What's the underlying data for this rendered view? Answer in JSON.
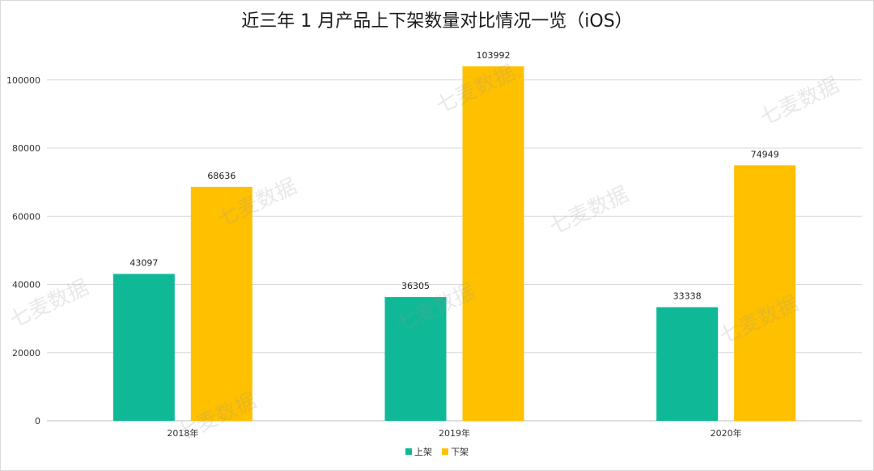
{
  "chart_data": {
    "type": "bar",
    "title": "近三年 1 月产品上下架数量对比情况一览（iOS）",
    "categories": [
      "2018年",
      "2019年",
      "2020年"
    ],
    "series": [
      {
        "name": "上架",
        "color": "#0fb997",
        "values": [
          43097,
          36305,
          33338
        ]
      },
      {
        "name": "下架",
        "color": "#ffc000",
        "values": [
          68636,
          103992,
          74949
        ]
      }
    ],
    "yticks": [
      "0",
      "20000",
      "40000",
      "60000",
      "80000",
      "100000"
    ],
    "ylim": [
      0,
      115000
    ],
    "grid": true,
    "legend_position": "bottom"
  },
  "watermark_text": "七麦数据"
}
